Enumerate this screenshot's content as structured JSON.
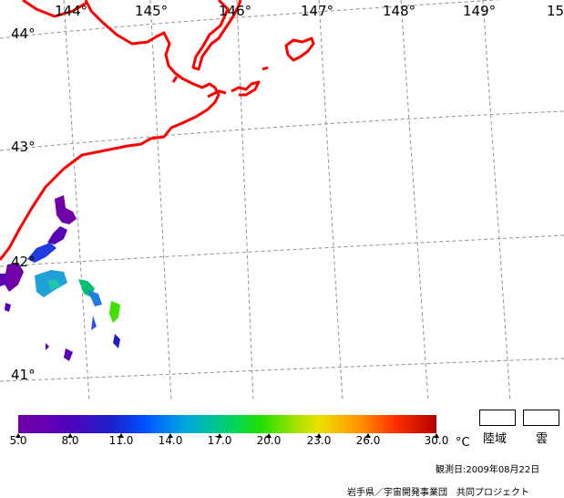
{
  "map": {
    "longitude_labels": [
      "144°",
      "145°",
      "146°",
      "147°",
      "148°",
      "149°",
      "15"
    ],
    "latitude_labels": [
      "44°",
      "43°",
      "42°",
      "41°"
    ],
    "coast_color": "#ff0000",
    "grid_color": "#909090"
  },
  "colorbar": {
    "ticks": [
      "5.0",
      "8.0",
      "11.0",
      "14.0",
      "17.0",
      "20.0",
      "23.0",
      "26.0",
      "30.0"
    ],
    "unit": "°C"
  },
  "legend": {
    "land_label": "陸域",
    "cloud_label": "雲"
  },
  "observation_date": "観測日:2009年08月22日",
  "credit": "岩手県／宇宙開発事業団　共同プロジェクト"
}
